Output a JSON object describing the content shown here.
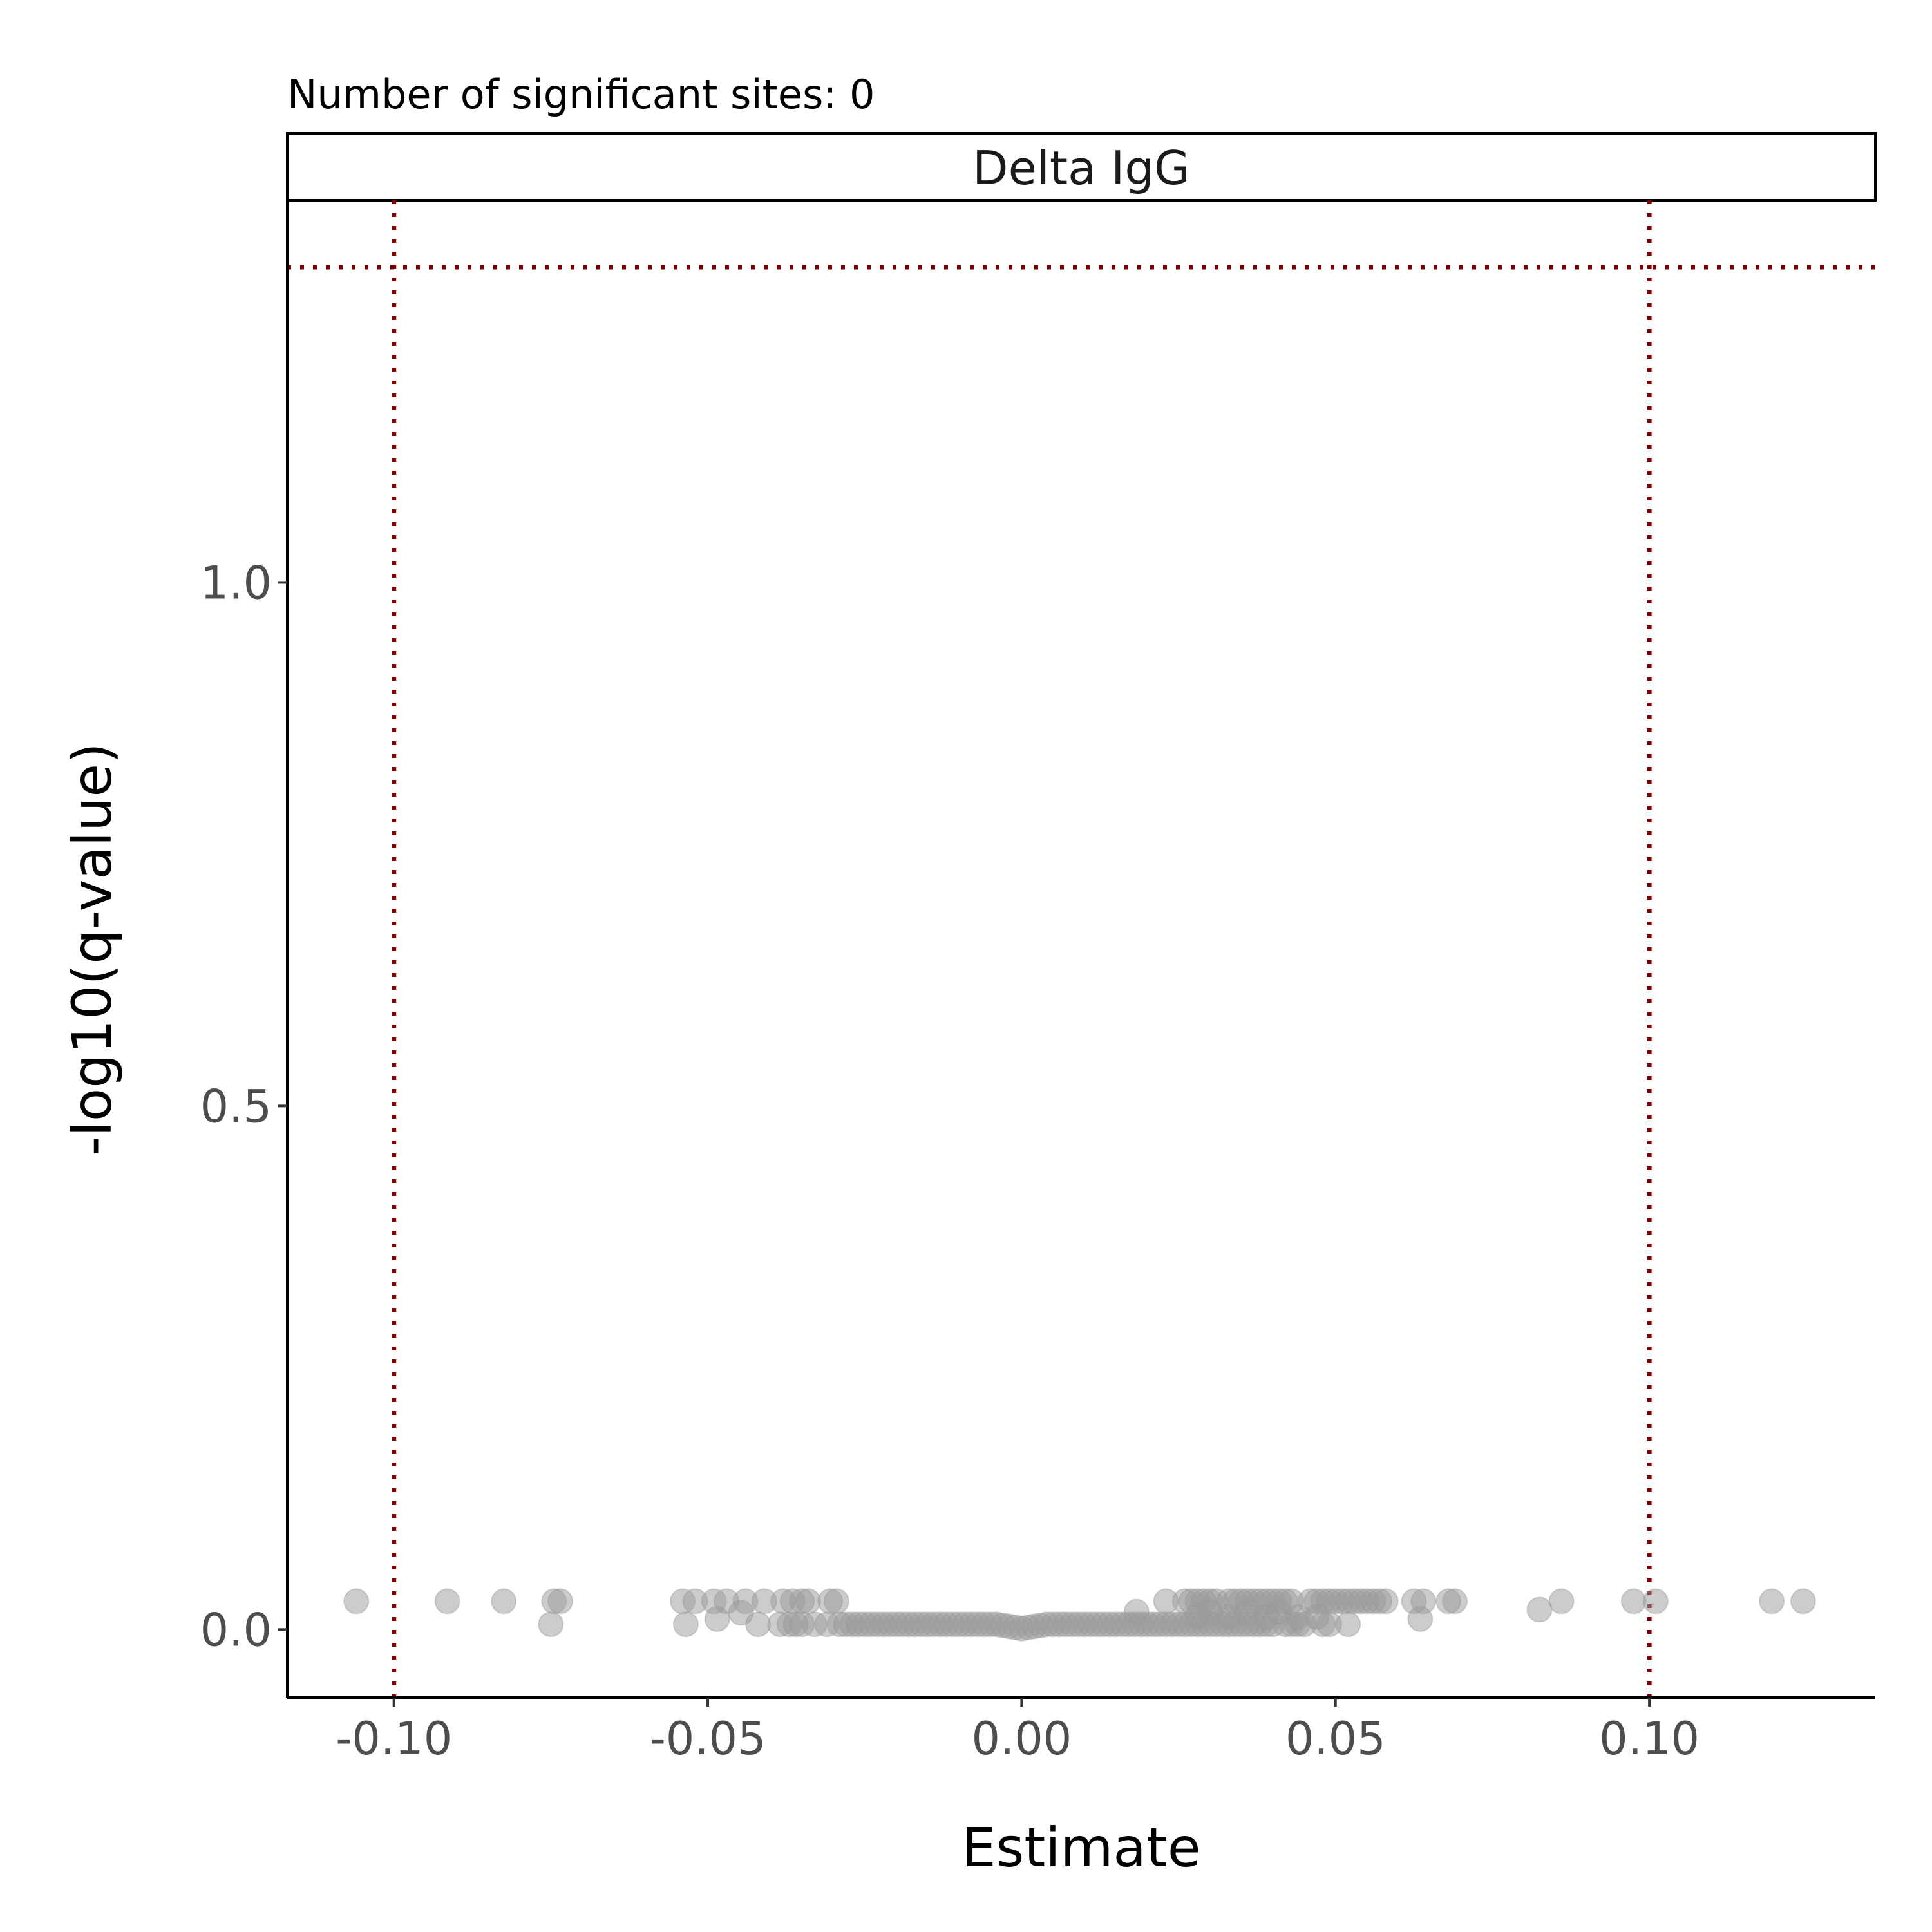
{
  "chart_data": {
    "type": "scatter",
    "title": "Number of significant sites: 0",
    "facet_label": "Delta IgG",
    "xlabel": "Estimate",
    "ylabel": "-log10(q-value)",
    "xlim": [
      -0.117,
      0.136
    ],
    "ylim": [
      -0.065,
      1.365
    ],
    "x_ticks": [
      -0.1,
      -0.05,
      0.0,
      0.05,
      0.1
    ],
    "x_tick_labels": [
      "-0.10",
      "-0.05",
      "0.00",
      "0.05",
      "0.10"
    ],
    "y_ticks": [
      0.0,
      0.5,
      1.0
    ],
    "y_tick_labels": [
      "0.0",
      "0.5",
      "1.0"
    ],
    "grid": false,
    "legend": "none",
    "reference_lines": {
      "vertical": [
        -0.1,
        0.1
      ],
      "horizontal": [
        1.301
      ],
      "color": "#7f0000",
      "style": "dotted"
    },
    "point_color": "#999999",
    "point_opacity": 0.5,
    "points": [
      {
        "x": -0.106,
        "y": 0.027
      },
      {
        "x": -0.0915,
        "y": 0.027
      },
      {
        "x": -0.0825,
        "y": 0.027
      },
      {
        "x": -0.0745,
        "y": 0.027
      },
      {
        "x": -0.0735,
        "y": 0.027
      },
      {
        "x": -0.075,
        "y": 0.005
      },
      {
        "x": -0.054,
        "y": 0.027
      },
      {
        "x": -0.052,
        "y": 0.027
      },
      {
        "x": -0.049,
        "y": 0.027
      },
      {
        "x": -0.047,
        "y": 0.027
      },
      {
        "x": -0.044,
        "y": 0.027
      },
      {
        "x": -0.041,
        "y": 0.027
      },
      {
        "x": -0.038,
        "y": 0.027
      },
      {
        "x": -0.0365,
        "y": 0.027
      },
      {
        "x": -0.035,
        "y": 0.027
      },
      {
        "x": -0.034,
        "y": 0.027
      },
      {
        "x": -0.0305,
        "y": 0.027
      },
      {
        "x": -0.0295,
        "y": 0.027
      },
      {
        "x": -0.0535,
        "y": 0.005
      },
      {
        "x": -0.0485,
        "y": 0.01
      },
      {
        "x": -0.0447,
        "y": 0.016
      },
      {
        "x": -0.042,
        "y": 0.005
      },
      {
        "x": -0.0385,
        "y": 0.005
      },
      {
        "x": -0.037,
        "y": 0.005
      },
      {
        "x": -0.036,
        "y": 0.005
      },
      {
        "x": -0.035,
        "y": 0.005
      },
      {
        "x": -0.033,
        "y": 0.005
      },
      {
        "x": -0.031,
        "y": 0.005
      },
      {
        "x": -0.029,
        "y": 0.005
      },
      {
        "x": -0.028,
        "y": 0.005
      },
      {
        "x": -0.027,
        "y": 0.005
      },
      {
        "x": -0.026,
        "y": 0.005
      },
      {
        "x": -0.025,
        "y": 0.005
      },
      {
        "x": -0.024,
        "y": 0.005
      },
      {
        "x": -0.023,
        "y": 0.005
      },
      {
        "x": -0.022,
        "y": 0.005
      },
      {
        "x": -0.021,
        "y": 0.005
      },
      {
        "x": -0.02,
        "y": 0.005
      },
      {
        "x": -0.019,
        "y": 0.005
      },
      {
        "x": -0.018,
        "y": 0.005
      },
      {
        "x": -0.017,
        "y": 0.005
      },
      {
        "x": -0.016,
        "y": 0.005
      },
      {
        "x": -0.015,
        "y": 0.005
      },
      {
        "x": -0.014,
        "y": 0.005
      },
      {
        "x": -0.013,
        "y": 0.005
      },
      {
        "x": -0.012,
        "y": 0.005
      },
      {
        "x": -0.011,
        "y": 0.005
      },
      {
        "x": -0.01,
        "y": 0.005
      },
      {
        "x": -0.009,
        "y": 0.005
      },
      {
        "x": -0.008,
        "y": 0.005
      },
      {
        "x": -0.007,
        "y": 0.005
      },
      {
        "x": -0.006,
        "y": 0.005
      },
      {
        "x": -0.005,
        "y": 0.005
      },
      {
        "x": -0.004,
        "y": 0.005
      },
      {
        "x": -0.003,
        "y": 0.004
      },
      {
        "x": -0.002,
        "y": 0.003
      },
      {
        "x": -0.001,
        "y": 0.002
      },
      {
        "x": 0.0,
        "y": 0.001
      },
      {
        "x": 0.001,
        "y": 0.002
      },
      {
        "x": 0.002,
        "y": 0.003
      },
      {
        "x": 0.003,
        "y": 0.004
      },
      {
        "x": 0.004,
        "y": 0.005
      },
      {
        "x": 0.005,
        "y": 0.005
      },
      {
        "x": 0.006,
        "y": 0.005
      },
      {
        "x": 0.007,
        "y": 0.005
      },
      {
        "x": 0.008,
        "y": 0.005
      },
      {
        "x": 0.009,
        "y": 0.005
      },
      {
        "x": 0.01,
        "y": 0.005
      },
      {
        "x": 0.011,
        "y": 0.005
      },
      {
        "x": 0.012,
        "y": 0.005
      },
      {
        "x": 0.013,
        "y": 0.005
      },
      {
        "x": 0.014,
        "y": 0.005
      },
      {
        "x": 0.015,
        "y": 0.005
      },
      {
        "x": 0.016,
        "y": 0.005
      },
      {
        "x": 0.017,
        "y": 0.005
      },
      {
        "x": 0.018,
        "y": 0.005
      },
      {
        "x": 0.019,
        "y": 0.005
      },
      {
        "x": 0.02,
        "y": 0.005
      },
      {
        "x": 0.021,
        "y": 0.005
      },
      {
        "x": 0.022,
        "y": 0.005
      },
      {
        "x": 0.023,
        "y": 0.005
      },
      {
        "x": 0.024,
        "y": 0.005
      },
      {
        "x": 0.025,
        "y": 0.005
      },
      {
        "x": 0.026,
        "y": 0.005
      },
      {
        "x": 0.027,
        "y": 0.005
      },
      {
        "x": 0.028,
        "y": 0.005
      },
      {
        "x": 0.029,
        "y": 0.005
      },
      {
        "x": 0.03,
        "y": 0.005
      },
      {
        "x": 0.031,
        "y": 0.005
      },
      {
        "x": 0.032,
        "y": 0.005
      },
      {
        "x": 0.033,
        "y": 0.005
      },
      {
        "x": 0.034,
        "y": 0.005
      },
      {
        "x": 0.035,
        "y": 0.005
      },
      {
        "x": 0.036,
        "y": 0.005
      },
      {
        "x": 0.037,
        "y": 0.005
      },
      {
        "x": 0.038,
        "y": 0.005
      },
      {
        "x": 0.039,
        "y": 0.005
      },
      {
        "x": 0.04,
        "y": 0.005
      },
      {
        "x": 0.042,
        "y": 0.005
      },
      {
        "x": 0.043,
        "y": 0.005
      },
      {
        "x": 0.044,
        "y": 0.005
      },
      {
        "x": 0.045,
        "y": 0.005
      },
      {
        "x": 0.048,
        "y": 0.005
      },
      {
        "x": 0.049,
        "y": 0.005
      },
      {
        "x": 0.052,
        "y": 0.005
      },
      {
        "x": 0.0183,
        "y": 0.017
      },
      {
        "x": 0.028,
        "y": 0.013
      },
      {
        "x": 0.03,
        "y": 0.017
      },
      {
        "x": 0.033,
        "y": 0.012
      },
      {
        "x": 0.036,
        "y": 0.017
      },
      {
        "x": 0.039,
        "y": 0.012
      },
      {
        "x": 0.041,
        "y": 0.017
      },
      {
        "x": 0.044,
        "y": 0.012
      },
      {
        "x": 0.047,
        "y": 0.012
      },
      {
        "x": 0.023,
        "y": 0.027
      },
      {
        "x": 0.026,
        "y": 0.027
      },
      {
        "x": 0.027,
        "y": 0.027
      },
      {
        "x": 0.028,
        "y": 0.027
      },
      {
        "x": 0.029,
        "y": 0.027
      },
      {
        "x": 0.03,
        "y": 0.027
      },
      {
        "x": 0.031,
        "y": 0.027
      },
      {
        "x": 0.033,
        "y": 0.027
      },
      {
        "x": 0.034,
        "y": 0.027
      },
      {
        "x": 0.035,
        "y": 0.027
      },
      {
        "x": 0.036,
        "y": 0.027
      },
      {
        "x": 0.037,
        "y": 0.027
      },
      {
        "x": 0.038,
        "y": 0.027
      },
      {
        "x": 0.039,
        "y": 0.027
      },
      {
        "x": 0.04,
        "y": 0.027
      },
      {
        "x": 0.041,
        "y": 0.027
      },
      {
        "x": 0.042,
        "y": 0.027
      },
      {
        "x": 0.043,
        "y": 0.027
      },
      {
        "x": 0.046,
        "y": 0.027
      },
      {
        "x": 0.047,
        "y": 0.027
      },
      {
        "x": 0.048,
        "y": 0.027
      },
      {
        "x": 0.049,
        "y": 0.027
      },
      {
        "x": 0.05,
        "y": 0.027
      },
      {
        "x": 0.051,
        "y": 0.027
      },
      {
        "x": 0.052,
        "y": 0.027
      },
      {
        "x": 0.053,
        "y": 0.027
      },
      {
        "x": 0.054,
        "y": 0.027
      },
      {
        "x": 0.055,
        "y": 0.027
      },
      {
        "x": 0.056,
        "y": 0.027
      },
      {
        "x": 0.057,
        "y": 0.027
      },
      {
        "x": 0.058,
        "y": 0.027
      },
      {
        "x": 0.0625,
        "y": 0.027
      },
      {
        "x": 0.064,
        "y": 0.027
      },
      {
        "x": 0.068,
        "y": 0.027
      },
      {
        "x": 0.069,
        "y": 0.027
      },
      {
        "x": 0.0635,
        "y": 0.01
      },
      {
        "x": 0.0825,
        "y": 0.019
      },
      {
        "x": 0.086,
        "y": 0.027
      },
      {
        "x": 0.0975,
        "y": 0.027
      },
      {
        "x": 0.101,
        "y": 0.027
      },
      {
        "x": 0.1195,
        "y": 0.027
      },
      {
        "x": 0.1245,
        "y": 0.027
      }
    ]
  }
}
